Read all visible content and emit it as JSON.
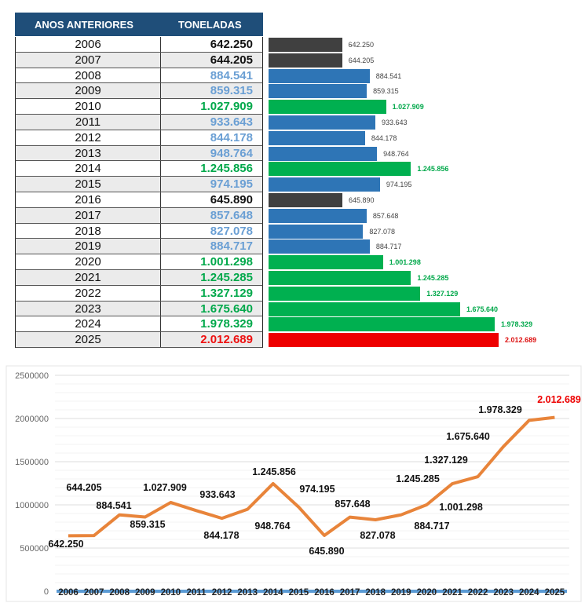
{
  "table": {
    "headers": [
      "ANOS  ANTERIORES",
      "TONELADAS"
    ],
    "rows": [
      {
        "year": "2006",
        "value": "642.250",
        "tons": 642250,
        "category": "dark"
      },
      {
        "year": "2007",
        "value": "644.205",
        "tons": 644205,
        "category": "dark"
      },
      {
        "year": "2008",
        "value": "884.541",
        "tons": 884541,
        "category": "blue"
      },
      {
        "year": "2009",
        "value": "859.315",
        "tons": 859315,
        "category": "blue"
      },
      {
        "year": "2010",
        "value": "1.027.909",
        "tons": 1027909,
        "category": "green"
      },
      {
        "year": "2011",
        "value": "933.643",
        "tons": 933643,
        "category": "blue"
      },
      {
        "year": "2012",
        "value": "844.178",
        "tons": 844178,
        "category": "blue"
      },
      {
        "year": "2013",
        "value": "948.764",
        "tons": 948764,
        "category": "blue"
      },
      {
        "year": "2014",
        "value": "1.245.856",
        "tons": 1245856,
        "category": "green"
      },
      {
        "year": "2015",
        "value": "974.195",
        "tons": 974195,
        "category": "blue"
      },
      {
        "year": "2016",
        "value": "645.890",
        "tons": 645890,
        "category": "dark"
      },
      {
        "year": "2017",
        "value": "857.648",
        "tons": 857648,
        "category": "blue"
      },
      {
        "year": "2018",
        "value": "827.078",
        "tons": 827078,
        "category": "blue"
      },
      {
        "year": "2019",
        "value": "884.717",
        "tons": 884717,
        "category": "blue"
      },
      {
        "year": "2020",
        "value": "1.001.298",
        "tons": 1001298,
        "category": "green"
      },
      {
        "year": "2021",
        "value": "1.245.285",
        "tons": 1245285,
        "category": "green"
      },
      {
        "year": "2022",
        "value": "1.327.129",
        "tons": 1327129,
        "category": "green"
      },
      {
        "year": "2023",
        "value": "1.675.640",
        "tons": 1675640,
        "category": "green"
      },
      {
        "year": "2024",
        "value": "1.978.329",
        "tons": 1978329,
        "category": "green"
      },
      {
        "year": "2025",
        "value": "2.012.689",
        "tons": 2012689,
        "category": "red"
      }
    ]
  },
  "colors": {
    "header_bg": "#1f4e79",
    "dark": {
      "bar": "#404040",
      "text": "#111111",
      "label": "#444444"
    },
    "blue": {
      "bar": "#2e75b6",
      "text": "#6a9fd4",
      "label": "#444444"
    },
    "green": {
      "bar": "#00b050",
      "text": "#00a84a",
      "label": "#00a84a"
    },
    "red": {
      "bar": "#ee0000",
      "text": "#ee1111",
      "label": "#dd1111"
    },
    "line": "#e8843a",
    "baseline": "#5b9bd5"
  },
  "chart_data": {
    "type": "line",
    "categories": [
      "2006",
      "2007",
      "2008",
      "2009",
      "2010",
      "2011",
      "2012",
      "2013",
      "2014",
      "2015",
      "2016",
      "2017",
      "2018",
      "2019",
      "2020",
      "2021",
      "2022",
      "2023",
      "2024",
      "2025"
    ],
    "series": [
      {
        "values": [
          642250,
          644205,
          884541,
          859315,
          1027909,
          933643,
          844178,
          948764,
          1245856,
          974195,
          645890,
          857648,
          827078,
          884717,
          1001298,
          1245285,
          1327129,
          1675640,
          1978329,
          2012689
        ]
      }
    ],
    "data_labels": [
      "642.250",
      "644.205",
      "884.541",
      "859.315",
      "1.027.909",
      "933.643",
      "844.178",
      "948.764",
      "1.245.856",
      "974.195",
      "645.890",
      "857.648",
      "827.078",
      "884.717",
      "1.001.298",
      "1.245.285",
      "1.327.129",
      "1.675.640",
      "1.978.329",
      "2.012.689"
    ],
    "yticks": [
      "0",
      "500000",
      "1000000",
      "1500000",
      "2000000",
      "2500000"
    ],
    "ylim": [
      0,
      2500000
    ],
    "grid": true,
    "title": "",
    "xlabel": "",
    "ylabel": ""
  }
}
